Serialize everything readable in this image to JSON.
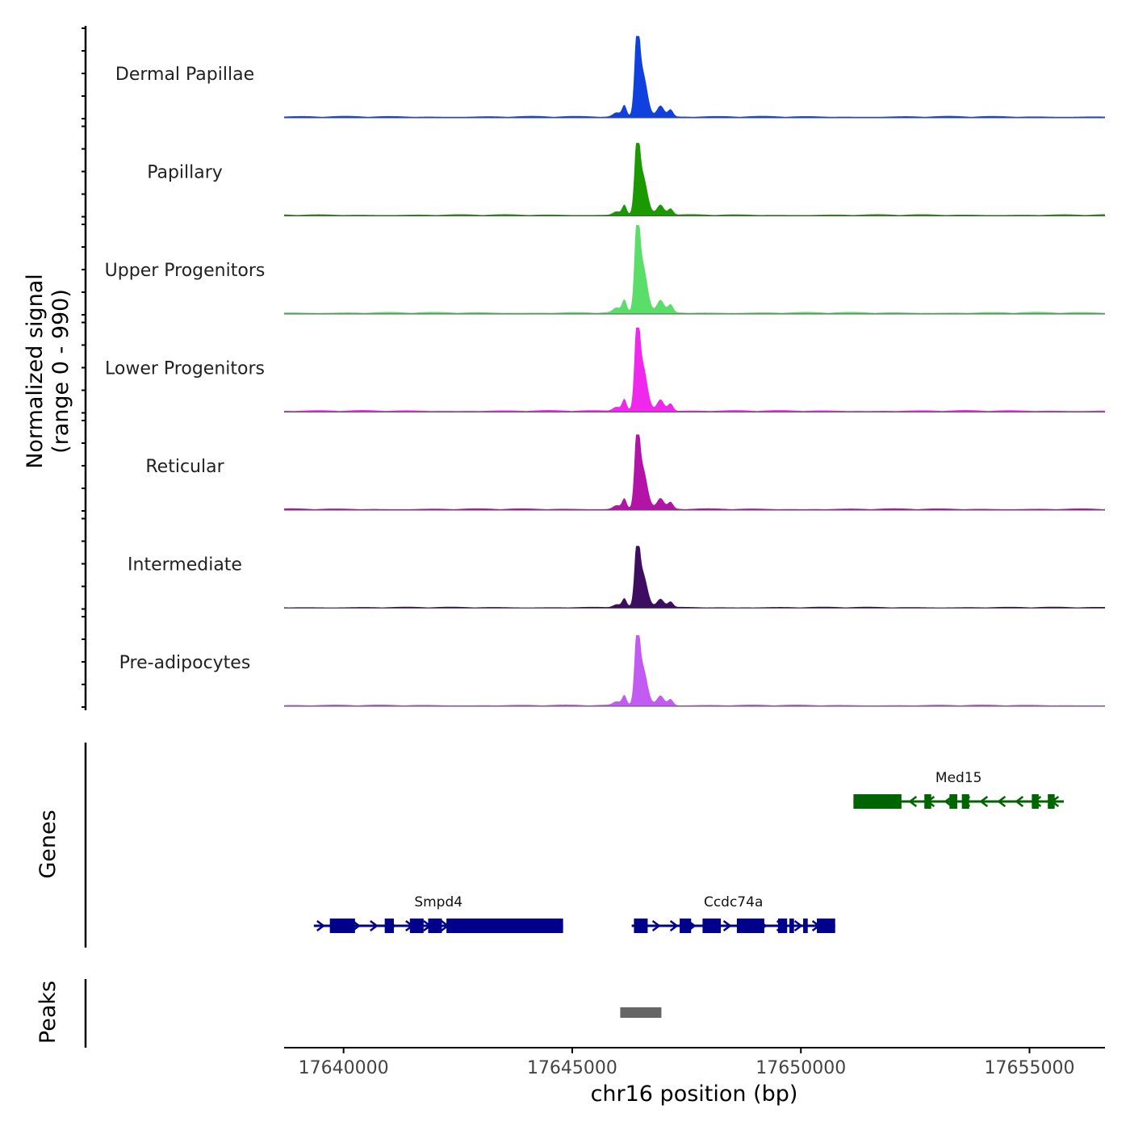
{
  "chart_data": {
    "type": "area",
    "title": "",
    "xlabel": "chr16 position (bp)",
    "ylabel": "Normalized signal",
    "ylabel_sub": "(range 0 - 990)",
    "y_range": [
      0,
      990
    ],
    "xlim": [
      17638700,
      17656650
    ],
    "x_ticks": [
      17640000,
      17645000,
      17650000,
      17655000
    ],
    "x_tick_labels": [
      "17640000",
      "17645000",
      "17650000",
      "17655000"
    ],
    "tracks": [
      {
        "name": "Dermal Papillae",
        "color": "#1040dd",
        "peak_height": 0.92
      },
      {
        "name": "Papillary",
        "color": "#1a9a00",
        "peak_height": 0.82
      },
      {
        "name": "Upper Progenitors",
        "color": "#5bdd6a",
        "peak_height": 1.0
      },
      {
        "name": "Lower Progenitors",
        "color": "#f027ec",
        "peak_height": 0.95
      },
      {
        "name": "Reticular",
        "color": "#b313a6",
        "peak_height": 0.85
      },
      {
        "name": "Intermediate",
        "color": "#3c0d60",
        "peak_height": 0.7
      },
      {
        "name": "Pre-adipocytes",
        "color": "#c25bf2",
        "peak_height": 0.8
      }
    ],
    "peak_center": 17646420,
    "genes_panel_label": "Genes",
    "genes": [
      {
        "name": "Med15",
        "color": "#006400",
        "strand": "-",
        "start": 17651150,
        "end": 17655750,
        "row": 0,
        "exons": [
          [
            17651150,
            17652200
          ],
          [
            17652700,
            17652850
          ],
          [
            17653250,
            17653420
          ],
          [
            17653520,
            17653680
          ],
          [
            17655050,
            17655200
          ],
          [
            17655400,
            17655550
          ]
        ]
      },
      {
        "name": "Smpd4",
        "color": "#00008b",
        "strand": "+",
        "start": 17639350,
        "end": 17644800,
        "row": 1,
        "exons": [
          [
            17639700,
            17640250
          ],
          [
            17640900,
            17641100
          ],
          [
            17641450,
            17641750
          ],
          [
            17641850,
            17642150
          ],
          [
            17642250,
            17644800
          ]
        ]
      },
      {
        "name": "Ccdc74a",
        "color": "#00008b",
        "strand": "+",
        "start": 17646300,
        "end": 17650750,
        "row": 1,
        "exons": [
          [
            17646350,
            17646650
          ],
          [
            17647350,
            17647600
          ],
          [
            17647850,
            17648250
          ],
          [
            17648600,
            17649200
          ],
          [
            17649500,
            17649700
          ],
          [
            17649750,
            17649850
          ],
          [
            17650050,
            17650150
          ],
          [
            17650350,
            17650750
          ]
        ]
      }
    ],
    "peaks_panel_label": "Peaks",
    "peaks": [
      {
        "start": 17646050,
        "end": 17646950,
        "color": "#666666"
      }
    ]
  }
}
